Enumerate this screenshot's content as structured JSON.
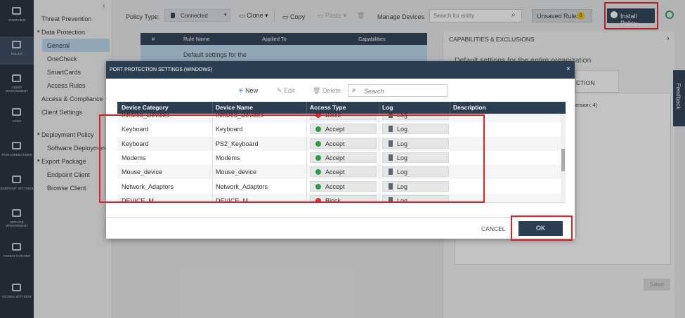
{
  "sidebar": [
    "OVERVIEW",
    "POLICY",
    "ASSET MANAGEMENT",
    "LOGS",
    "PUSH OPERATIONS",
    "ENDPOINT SETTINGS",
    "SERVICE MANAGEMENT",
    "THREAT HUNTING",
    "GLOBAL SETTINGS"
  ],
  "nav": [
    {
      "label": "Threat Prevention",
      "level": 0
    },
    {
      "label": "Data Protection",
      "level": 0,
      "group": true
    },
    {
      "label": "General",
      "level": 1,
      "selected": true
    },
    {
      "label": "OneCheck",
      "level": 1
    },
    {
      "label": "SmartCards",
      "level": 1
    },
    {
      "label": "Access Rules",
      "level": 1
    },
    {
      "label": "Access & Compliance",
      "level": 0
    },
    {
      "label": "Client Settings",
      "level": 0
    },
    {
      "label": "Deployment Policy",
      "level": 0,
      "group": true
    },
    {
      "label": "Software Deployment",
      "level": 1
    },
    {
      "label": "Export Package",
      "level": 0,
      "group": true
    },
    {
      "label": "Endpoint Client",
      "level": 1
    },
    {
      "label": "Browse Client",
      "level": 1
    }
  ],
  "toolbar": {
    "policy_type": "Policy Type:",
    "connected": "Connected",
    "clone": "Clone",
    "copy": "Copy",
    "paste": "Paste",
    "manage": "Manage Devices",
    "search": "Search for entity",
    "unsaved": "Unsaved Rules",
    "unsaved_count": "0",
    "install": "Install Policy"
  },
  "rules_table": {
    "headers": [
      "#",
      "Rule Name",
      "Applied To",
      "Capabilities"
    ],
    "row": "Default settings for the"
  },
  "right_panel": {
    "title": "CAPABILITIES & EXCLUSIONS",
    "subtitle": "Default settings for the entire organization",
    "tab": "CTION",
    "version": "ersion: 4)",
    "save": "Save"
  },
  "feedback": "Feedback",
  "modal": {
    "title": "PORT PROTECTION SETTINGS (WINDOWS)",
    "new": "New",
    "edit": "Edit",
    "delete": "Delete",
    "search": "Search",
    "headers": [
      "Device Category",
      "Device Name",
      "Access Type",
      "Log",
      "Description"
    ],
    "rows": [
      [
        "Infrared_Devices",
        "Infrared_Devices",
        "Block",
        "Log"
      ],
      [
        "Keyboard",
        "Keyboard",
        "Accept",
        "Log"
      ],
      [
        "Keyboard",
        "PS2_Keyboard",
        "Accept",
        "Log"
      ],
      [
        "Modems",
        "Modems",
        "Accept",
        "Log"
      ],
      [
        "Mouse_device",
        "Mouse_device",
        "Accept",
        "Log"
      ],
      [
        "Network_Adaptors",
        "Network_Adaptors",
        "Accept",
        "Log"
      ],
      [
        "DEVICE_M",
        "DEVICE_M",
        "Block",
        "Log"
      ]
    ],
    "cancel": "CANCEL",
    "ok": "OK"
  }
}
